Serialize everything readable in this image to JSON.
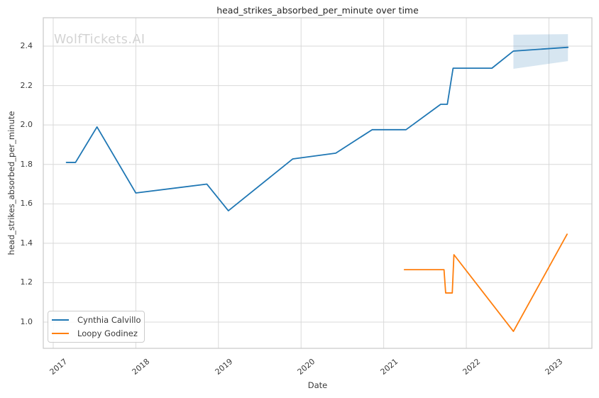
{
  "figure": {
    "watermark": "WolfTickets.AI"
  },
  "chart_data": {
    "type": "line",
    "title": "head_strikes_absorbed_per_minute over time",
    "xlabel": "Date",
    "ylabel": "head_strikes_absorbed_per_minute",
    "grid": true,
    "legend_position": "lower-left",
    "xlim": [
      2016.88,
      2023.52
    ],
    "ylim": [
      0.867,
      2.544
    ],
    "x_ticks": [
      2017,
      2018,
      2019,
      2020,
      2021,
      2022,
      2023
    ],
    "x_tick_labels": [
      "2017",
      "2018",
      "2019",
      "2020",
      "2021",
      "2022",
      "2023"
    ],
    "y_ticks": [
      1.0,
      1.2,
      1.4,
      1.6,
      1.8,
      2.0,
      2.2,
      2.4
    ],
    "y_tick_labels": [
      "1.0",
      "1.2",
      "1.4",
      "1.6",
      "1.8",
      "2.0",
      "2.2",
      "2.4"
    ],
    "colors": {
      "grid": "#d9d9d9",
      "spine": "#c9c9c9",
      "title_text": "#262626",
      "tick_text": "#3a3a3a"
    },
    "series": [
      {
        "name": "Cynthia Calvillo",
        "color": "#1f77b4",
        "x": [
          2017.16,
          2017.27,
          2017.53,
          2018.0,
          2018.86,
          2019.12,
          2019.9,
          2020.42,
          2020.86,
          2021.27,
          2021.69,
          2021.77,
          2021.84,
          2022.31,
          2022.57,
          2023.23
        ],
        "y": [
          1.81,
          1.81,
          1.99,
          1.655,
          1.7,
          1.565,
          1.828,
          1.857,
          1.976,
          1.976,
          2.105,
          2.105,
          2.288,
          2.288,
          2.375,
          2.394
        ]
      },
      {
        "name": "Loopy Godinez",
        "color": "#ff7f0e",
        "x": [
          2021.25,
          2021.73,
          2021.75,
          2021.83,
          2021.85,
          2022.57,
          2023.22
        ],
        "y": [
          1.266,
          1.266,
          1.148,
          1.148,
          1.342,
          0.953,
          1.446
        ]
      }
    ],
    "confidence_band": {
      "series": "Cynthia Calvillo",
      "color": "#1f77b4",
      "opacity": 0.18,
      "x": [
        2022.57,
        2023.23
      ],
      "upper": [
        2.458,
        2.461
      ],
      "lower": [
        2.285,
        2.324
      ]
    }
  }
}
